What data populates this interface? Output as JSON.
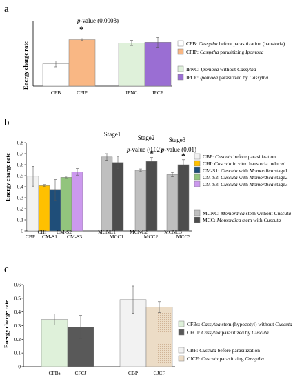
{
  "chart_data": [
    {
      "panel": "a",
      "type": "bar",
      "ylabel": "Energy charge rate",
      "ylim": [
        0,
        1
      ],
      "yticks": [],
      "categories": [
        "CFB",
        "CFIP",
        "IPNC",
        "IPCF"
      ],
      "values": [
        0.34,
        0.71,
        0.66,
        0.67
      ],
      "errors": [
        0.045,
        0.015,
        0.04,
        0.075
      ],
      "colors": [
        "#ffffff",
        "#f9b784",
        "#dff1da",
        "#9a6ed3"
      ],
      "legend": [
        {
          "code": "CFB:",
          "text": "Cassytha before parasitization (haustoria)",
          "color": "#ffffff"
        },
        {
          "code": "CFIP:",
          "text": "Cassytha parasitizing Ipomoea",
          "color": "#f9b784"
        },
        {
          "code": "IPNC:",
          "text": "Ipomoea without Cassytha",
          "color": "#dff1da"
        },
        {
          "code": "IPCF:",
          "text": "Ipomoea parasitized by Cassytha",
          "color": "#9a6ed3"
        }
      ],
      "annotations": [
        {
          "text": "p-value (0.0003)",
          "star": "*"
        }
      ]
    },
    {
      "panel": "b",
      "type": "bar",
      "ylabel": "Energy charge rate",
      "ylim": [
        0,
        0.8
      ],
      "yticks": [
        "0",
        "0.1",
        "0.2",
        "0.3",
        "0.4",
        "0.5",
        "0.6",
        "0.7",
        "0.8"
      ],
      "ytick_values": [
        0,
        0.1,
        0.2,
        0.3,
        0.4,
        0.5,
        0.6,
        0.7,
        0.8
      ],
      "categories": [
        "CBP",
        "CHI",
        "CM-S1",
        "CM-S2",
        "CM-S3",
        "MCNC1",
        "MCC1",
        "MCNC2",
        "MCC2",
        "MCNC3",
        "MCC3"
      ],
      "values": [
        0.495,
        0.41,
        0.37,
        0.485,
        0.535,
        0.67,
        0.62,
        0.55,
        0.63,
        0.51,
        0.6
      ],
      "errors": [
        0.09,
        0.01,
        0.095,
        0.01,
        0.03,
        0.03,
        0.055,
        0.012,
        0.035,
        0.02,
        0.045
      ],
      "colors": [
        "#f2f2f2",
        "#ffc000",
        "#1f4e79",
        "#92c47d",
        "#cc99ee",
        "#bfbfbf",
        "#4d4d4d",
        "#bfbfbf",
        "#4d4d4d",
        "#bfbfbf",
        "#4d4d4d"
      ],
      "stages": [
        "Stage1",
        "Stage2",
        "Stage3"
      ],
      "legend": [
        {
          "code": "CBP:",
          "text": "Cuscuta before parasitization",
          "color": "#f2f2f2"
        },
        {
          "code": "CHI:",
          "text": "Cuscuta in vitro haustoria induced",
          "color": "#ffc000"
        },
        {
          "code": "CM-S1:",
          "text": "Cuscuta with Momordica stage1",
          "color": "#1f4e79"
        },
        {
          "code": "CM-S2:",
          "text": "Cuscuta with Momordica stage2",
          "color": "#92c47d"
        },
        {
          "code": "CM-S3:",
          "text": "Cuscuta with Momordica stage3",
          "color": "#cc99ee"
        },
        {
          "code": "MCNC:",
          "text": "Momordica stem without Cuscuta",
          "color": "#bfbfbf"
        },
        {
          "code": "MCC:",
          "text": "Momordica stem with Cuscuta",
          "color": "#4d4d4d"
        }
      ],
      "annotations": [
        {
          "text": "p-value (0.02)",
          "star": "*"
        },
        {
          "text": "p-value (0.01)",
          "star": "*"
        }
      ]
    },
    {
      "panel": "c",
      "type": "bar",
      "ylabel": "Energy charge rate",
      "ylim": [
        0,
        0.6
      ],
      "yticks": [
        "0",
        "0.1",
        "0.2",
        "0.3",
        "0.4",
        "0.5",
        "0.6"
      ],
      "ytick_values": [
        0,
        0.1,
        0.2,
        0.3,
        0.4,
        0.5,
        0.6
      ],
      "categories": [
        "CFBs",
        "CFCJ",
        "CBP",
        "CJCF"
      ],
      "values": [
        0.345,
        0.29,
        0.49,
        0.435
      ],
      "errors": [
        0.04,
        0.085,
        0.1,
        0.04
      ],
      "colors": [
        "#dff1da",
        "#595959",
        "#f2f2f2",
        "#e9d9c3"
      ],
      "legend": [
        {
          "code": "CFBs:",
          "text": "Cassytha stem (hypocotyl) without Cuscuta",
          "color": "#dff1da"
        },
        {
          "code": "CFCJ:",
          "text": "Cassytha parasitized by Cuscuta",
          "color": "#595959"
        },
        {
          "code": "CBP:",
          "text": "Cuscuta before parasitization",
          "color": "#f2f2f2"
        },
        {
          "code": "CJCF:",
          "text": "Cuscuta parasitizing Cassytha",
          "color": "#e9d9c3"
        }
      ]
    }
  ]
}
